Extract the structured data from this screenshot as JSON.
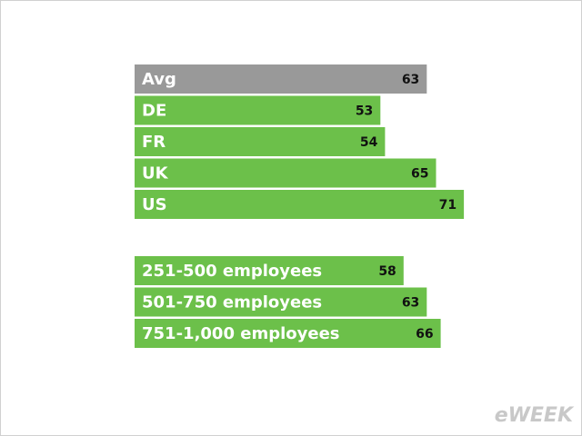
{
  "chart_data": [
    {
      "type": "bar",
      "orientation": "horizontal",
      "categories": [
        "Avg",
        "DE",
        "FR",
        "UK",
        "US"
      ],
      "values": [
        63,
        53,
        54,
        65,
        71
      ],
      "colors": [
        "#999999",
        "#6cc04a",
        "#6cc04a",
        "#6cc04a",
        "#6cc04a"
      ]
    },
    {
      "type": "bar",
      "orientation": "horizontal",
      "categories": [
        "251-500 employees",
        "501-750 employees",
        "751-1,000 employees"
      ],
      "values": [
        58,
        63,
        66
      ],
      "colors": [
        "#6cc04a",
        "#6cc04a",
        "#6cc04a"
      ]
    }
  ],
  "watermark": "eWEEK"
}
